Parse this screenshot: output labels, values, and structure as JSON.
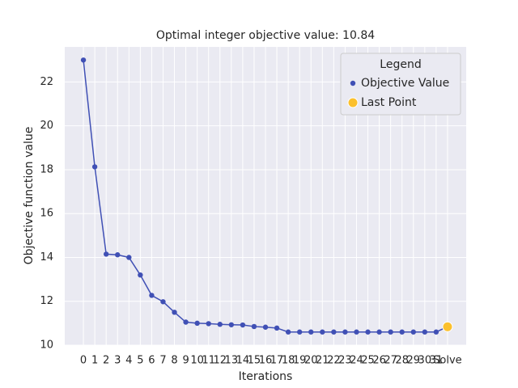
{
  "chart_data": {
    "type": "line",
    "title": "Optimal integer objective value: 10.84",
    "xlabel": "Iterations",
    "ylabel": "Objective function value",
    "categories": [
      "0",
      "1",
      "2",
      "3",
      "4",
      "5",
      "6",
      "7",
      "8",
      "9",
      "10",
      "11",
      "12",
      "13",
      "14",
      "15",
      "16",
      "17",
      "18",
      "19",
      "20",
      "21",
      "22",
      "23",
      "24",
      "25",
      "26",
      "27",
      "28",
      "29",
      "30",
      "31",
      "Solve"
    ],
    "series": [
      {
        "name": "Objective Value",
        "color": "#4050b5",
        "values": [
          23.0,
          18.13,
          14.15,
          14.12,
          14.0,
          13.2,
          12.27,
          11.98,
          11.5,
          11.05,
          11.0,
          10.98,
          10.95,
          10.93,
          10.92,
          10.85,
          10.82,
          10.78,
          10.6,
          10.6,
          10.6,
          10.6,
          10.6,
          10.6,
          10.6,
          10.6,
          10.6,
          10.6,
          10.6,
          10.6,
          10.6,
          10.6,
          10.84
        ]
      }
    ],
    "last_point": {
      "name": "Last Point",
      "color": "#fbc02d",
      "category": "Solve",
      "value": 10.84
    },
    "legend_title": "Legend",
    "legend": "upper right",
    "ylim": [
      10,
      23.6
    ],
    "yticks": [
      10,
      12,
      14,
      16,
      18,
      20,
      22
    ],
    "grid": true
  }
}
